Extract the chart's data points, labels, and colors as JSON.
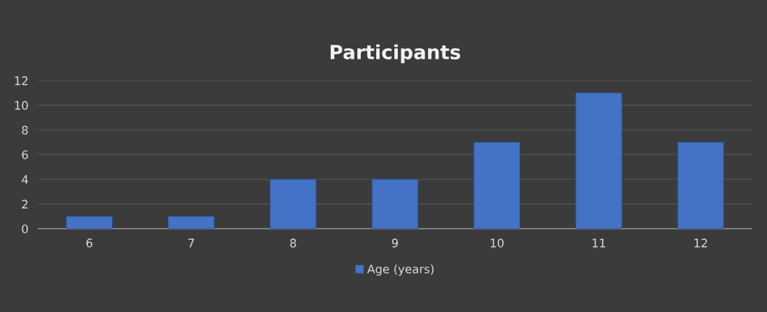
{
  "chart_data": {
    "type": "bar",
    "title": "Participants",
    "categories": [
      "6",
      "7",
      "8",
      "9",
      "10",
      "11",
      "12"
    ],
    "series": [
      {
        "name": "Age (years)",
        "color": "#4472c4",
        "values": [
          1,
          1,
          4,
          4,
          7,
          11,
          7
        ]
      }
    ],
    "ylim": [
      0,
      12
    ],
    "yticks": [
      0,
      2,
      4,
      6,
      8,
      10,
      12
    ],
    "grid": "y",
    "legend": "bottom"
  }
}
